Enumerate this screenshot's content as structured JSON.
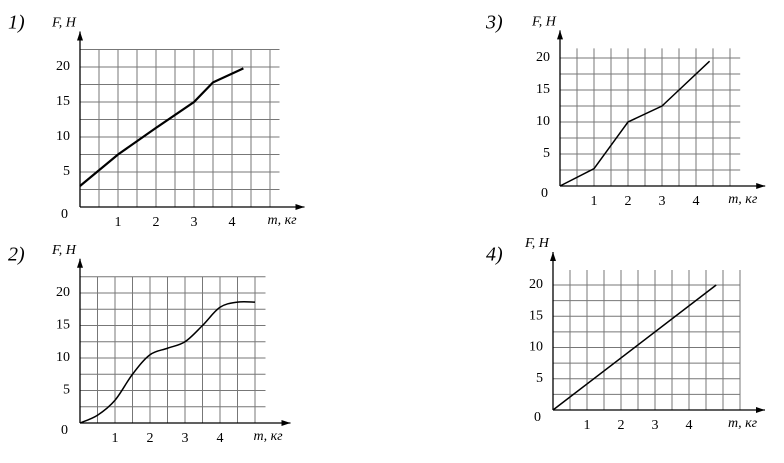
{
  "chart_data": [
    {
      "type": "line",
      "label": "1)",
      "y_label": "F, Н",
      "x_label": "m, кг",
      "origin_label": "0",
      "x": [
        0,
        1,
        2,
        3,
        3.5,
        4.3
      ],
      "values": [
        3,
        7.5,
        11.3,
        15,
        17.8,
        19.8
      ],
      "xlim": [
        0,
        5.25
      ],
      "ylim": [
        0,
        22.5
      ],
      "xticks": [
        1,
        2,
        3,
        4
      ],
      "yticks": [
        5,
        10,
        15,
        20
      ],
      "grid": true,
      "color": "#000000"
    },
    {
      "type": "line",
      "label": "3)",
      "y_label": "F, Н",
      "x_label": "m, кг",
      "origin_label": "0",
      "x": [
        0,
        1,
        2,
        3,
        3.5,
        4.4
      ],
      "values": [
        0,
        2.7,
        10,
        12.5,
        15,
        19.5
      ],
      "xlim": [
        0,
        5.3
      ],
      "ylim": [
        0,
        21.5
      ],
      "xticks": [
        1,
        2,
        3,
        4
      ],
      "yticks": [
        5,
        10,
        15,
        20
      ],
      "grid": true,
      "color": "#000000"
    },
    {
      "type": "smooth",
      "label": "2)",
      "y_label": "F, Н",
      "x_label": "m, кг",
      "origin_label": "0",
      "x": [
        0,
        0.5,
        1,
        1.5,
        2,
        2.5,
        3,
        3.5,
        4,
        4.5,
        5
      ],
      "values": [
        0,
        1.2,
        3.5,
        7.5,
        10.5,
        11.5,
        12.5,
        15,
        17.8,
        18.6,
        18.6
      ],
      "xlim": [
        0,
        5.3
      ],
      "ylim": [
        0,
        22.5
      ],
      "xticks": [
        1,
        2,
        3,
        4
      ],
      "yticks": [
        5,
        10,
        15,
        20
      ],
      "grid": true,
      "color": "#000000"
    },
    {
      "type": "line",
      "label": "4)",
      "y_label": "F, Н",
      "x_label": "m, кг",
      "origin_label": "0",
      "x": [
        0,
        4.8
      ],
      "values": [
        0,
        20
      ],
      "xlim": [
        0,
        5.5
      ],
      "ylim": [
        0,
        22.4
      ],
      "xticks": [
        1,
        2,
        3,
        4
      ],
      "yticks": [
        5,
        10,
        15,
        20
      ],
      "grid": true,
      "color": "#000000"
    }
  ]
}
